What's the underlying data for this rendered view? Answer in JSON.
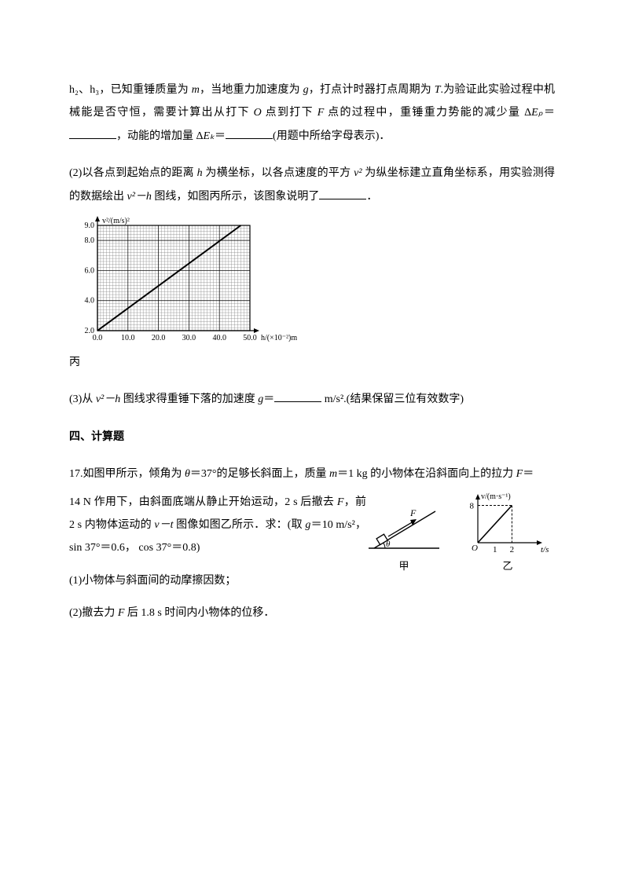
{
  "para1": {
    "pre": "h₂、h₃，已知重锤质量为 ",
    "m": "m",
    "mid1": "，当地重力加速度为 ",
    "g": "g",
    "mid2": "，打点计时器打点周期为 ",
    "T": "T",
    "mid3": ".为验证此实验过程中机械能是否守恒，需要计算出从打下 ",
    "O": "O",
    "mid4": " 点到打下 ",
    "F": "F",
    "mid5": " 点的过程中，重锤重力势能的减少量 Δ",
    "Ep": "Eₚ",
    "eq1": "＝",
    "mid6": "，动能的增加量 Δ",
    "Ek": "Eₖ",
    "eq2": "＝",
    "tail": "(用题中所给字母表示)．"
  },
  "para2": {
    "pre": "(2)以各点到起始点的距离 ",
    "h": "h",
    "mid1": " 为横坐标，以各点速度的平方 ",
    "v2": "v²",
    "mid2": " 为纵坐标建立直角坐标系，用实验测得的数据绘出 ",
    "v2h": "v²－h",
    "mid3": " 图线，如图丙所示，该图象说明了",
    "tail": "．"
  },
  "chart": {
    "type": "line",
    "y_label": "v²/(m/s)²",
    "x_label": "h/(×10⁻²)m",
    "x_ticks": [
      0,
      10.0,
      20.0,
      30.0,
      40.0,
      50.0
    ],
    "y_ticks": [
      2.0,
      4.0,
      6.0,
      8.0,
      9.0
    ],
    "xlim": [
      0,
      50
    ],
    "ylim": [
      2.0,
      9.0
    ],
    "points": [
      [
        0,
        2.0
      ],
      [
        47,
        9.0
      ]
    ],
    "line_color": "#000000",
    "grid_major_color": "#000000",
    "grid_minor_color": "#7a7a7a",
    "background_color": "#ffffff",
    "axis_fontsize": 10,
    "line_width": 2
  },
  "caption_c": "丙",
  "para3": {
    "pre": "(3)从 ",
    "v2h": "v²－h",
    "mid1": " 图线求得重锤下落的加速度 ",
    "g": "g",
    "eq": "＝",
    "unit": " m/s².(结果保留三位有效数字)"
  },
  "section4": "四、计算题",
  "q17": {
    "line1_a": "17.如图甲所示，倾角为 ",
    "theta": "θ",
    "line1_b": "＝37°的足够长斜面上，质量 ",
    "m": "m",
    "line1_c": "＝1 kg 的小物体在沿斜面向上的拉力 ",
    "F": "F",
    "line1_d": "＝",
    "line2_a": "14 N 作用下，由斜面底端从静止开始运动，2 s 后撤去 ",
    "F2": "F",
    "line2_b": "，前 2 s 内物体运动的 ",
    "vt": "v－t",
    "line2_c": " 图像如图乙所示．求：(取 ",
    "g": "g",
    "line2_d": "＝10 m/s²， sin 37°＝0.6， cos 37°＝0.8)",
    "sub1": "(1)小物体与斜面间的动摩擦因数；",
    "sub2": "(2)撤去力 ",
    "F3": "F",
    "sub2b": " 后 1.8 s 时间内小物体的位移．"
  },
  "fig_jia": {
    "label_F": "F",
    "label_theta": "θ",
    "caption": "甲",
    "line_color": "#000000"
  },
  "fig_yi": {
    "y_label": "v/(m·s⁻¹)",
    "x_label": "t/s",
    "x_ticks": [
      "O",
      "1",
      "2"
    ],
    "y_tick": "8",
    "line_color": "#000000",
    "caption": "乙"
  }
}
